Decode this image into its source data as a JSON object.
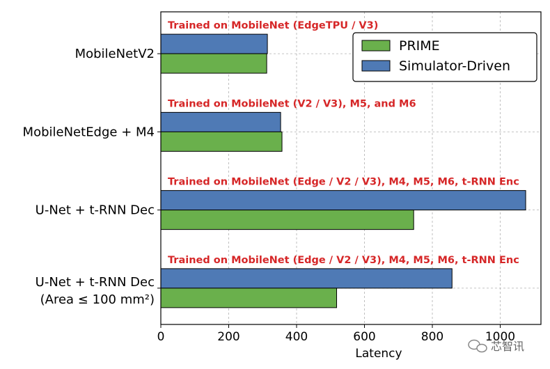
{
  "chart_data": {
    "type": "bar",
    "orientation": "horizontal",
    "categories": [
      {
        "line1": "MobileNetV2",
        "line2": ""
      },
      {
        "line1": "MobileNetEdge + M4",
        "line2": ""
      },
      {
        "line1": "U-Net + t-RNN Dec",
        "line2": ""
      },
      {
        "line1": "U-Net + t-RNN Dec",
        "line2": "(Area ≤ 100 mm²)"
      }
    ],
    "annotations": [
      "Trained on MobileNet (EdgeTPU / V3)",
      "Trained on MobileNet (V2 / V3), M5, and M6",
      "Trained on MobileNet (Edge / V2 / V3), M4, M5, M6, t-RNN Enc",
      "Trained on MobileNet (Edge / V2 / V3), M4, M5, M6, t-RNN Enc"
    ],
    "series": [
      {
        "name": "PRIME",
        "color": "#6ab04c",
        "values": [
          312,
          357,
          745,
          518
        ]
      },
      {
        "name": "Simulator-Driven",
        "color": "#4f7ab5",
        "values": [
          314,
          353,
          1075,
          858
        ]
      }
    ],
    "xlabel": "Latency",
    "xlim": [
      0,
      1120
    ],
    "xticks": [
      0,
      200,
      400,
      600,
      800,
      1000
    ],
    "grid": true,
    "legend_position": "top-right"
  },
  "watermark": "芯智讯"
}
